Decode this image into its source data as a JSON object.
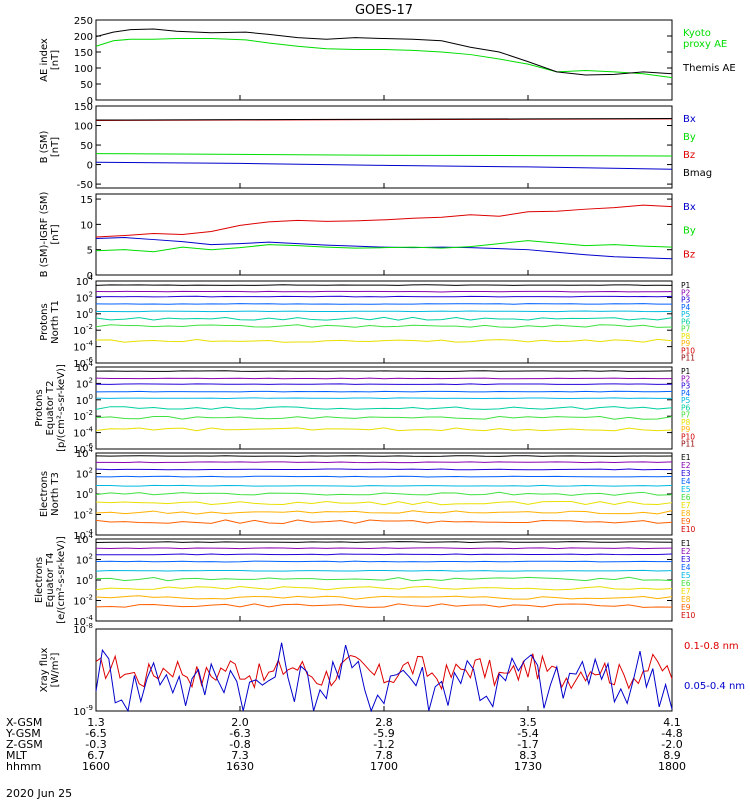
{
  "title": "GOES-17",
  "footer_date": "2020 Jun 25",
  "colors": {
    "black": "#000000",
    "green": "#00dd00",
    "blue": "#0000cc",
    "red": "#dd0000",
    "ch": [
      "#000000",
      "#8a00b0",
      "#2400d8",
      "#0060ff",
      "#00b8e0",
      "#00d0a0",
      "#40e040",
      "#e8e000",
      "#ffb000",
      "#ff6000",
      "#d00000",
      "#900000"
    ]
  },
  "chart_data": [
    {
      "type": "line",
      "id": "ae",
      "ylabel": [
        "AE index",
        "[nT]"
      ],
      "yscale": "linear",
      "ylim": [
        0,
        250
      ],
      "yticks": [
        "0",
        "50",
        "100",
        "150",
        "200",
        "250"
      ],
      "ytick_values": [
        0,
        50,
        100,
        150,
        200,
        250
      ],
      "x": [
        0,
        0.03,
        0.06,
        0.1,
        0.14,
        0.2,
        0.26,
        0.3,
        0.35,
        0.4,
        0.45,
        0.5,
        0.55,
        0.6,
        0.65,
        0.7,
        0.75,
        0.8,
        0.85,
        0.9,
        0.95,
        1.0
      ],
      "series": [
        {
          "name": "Kyoto proxy AE",
          "label_lines": [
            "Kyoto",
            "proxy AE"
          ],
          "color": "green",
          "values": [
            168,
            185,
            190,
            190,
            192,
            192,
            188,
            178,
            168,
            160,
            158,
            158,
            155,
            150,
            142,
            128,
            112,
            88,
            92,
            88,
            82,
            70
          ]
        },
        {
          "name": "Themis AE",
          "label_lines": [
            "Themis AE"
          ],
          "color": "black",
          "values": [
            198,
            212,
            220,
            222,
            215,
            210,
            212,
            205,
            195,
            190,
            195,
            192,
            190,
            185,
            165,
            150,
            120,
            88,
            78,
            80,
            88,
            82
          ]
        }
      ]
    },
    {
      "type": "line",
      "id": "bsm",
      "ylabel": [
        "B (SM)",
        "[nT]"
      ],
      "yscale": "linear",
      "ylim": [
        -60,
        150
      ],
      "yticks": [
        "-50",
        "0",
        "50",
        "100",
        "150"
      ],
      "ytick_values": [
        -50,
        0,
        50,
        100,
        150
      ],
      "x": [
        0,
        0.25,
        0.5,
        0.75,
        1.0
      ],
      "series": [
        {
          "name": "Bx",
          "color": "blue",
          "values": [
            6,
            3,
            -2,
            -6,
            -12
          ]
        },
        {
          "name": "By",
          "color": "green",
          "values": [
            28,
            26,
            24,
            23,
            22
          ]
        },
        {
          "name": "Bz",
          "color": "red",
          "values": [
            113,
            114,
            115,
            116,
            117
          ]
        },
        {
          "name": "Bmag",
          "color": "black",
          "values": [
            114,
            115,
            116,
            117,
            118
          ]
        }
      ]
    },
    {
      "type": "line",
      "id": "bigrf",
      "ylabel": [
        "B (SM)-IGRF (SM)",
        "[nT]"
      ],
      "yscale": "linear",
      "ylim": [
        0,
        16
      ],
      "yticks": [
        "0",
        "5",
        "10",
        "15"
      ],
      "ytick_values": [
        0,
        5,
        10,
        15
      ],
      "x": [
        0,
        0.05,
        0.1,
        0.15,
        0.2,
        0.25,
        0.3,
        0.35,
        0.4,
        0.45,
        0.5,
        0.55,
        0.6,
        0.65,
        0.7,
        0.75,
        0.8,
        0.85,
        0.9,
        0.95,
        1.0
      ],
      "series": [
        {
          "name": "Bx",
          "color": "blue",
          "values": [
            7.2,
            7.4,
            7.0,
            6.6,
            6.0,
            6.2,
            6.5,
            6.2,
            5.9,
            5.7,
            5.5,
            5.4,
            5.5,
            5.4,
            5.2,
            5.0,
            4.5,
            4.0,
            3.6,
            3.4,
            3.2
          ]
        },
        {
          "name": "By",
          "color": "green",
          "values": [
            4.8,
            5.0,
            4.6,
            5.5,
            5.0,
            5.4,
            6.0,
            5.8,
            5.5,
            5.3,
            5.4,
            5.5,
            5.3,
            5.6,
            6.2,
            6.8,
            6.3,
            5.8,
            6.0,
            5.7,
            5.5
          ]
        },
        {
          "name": "Bz",
          "color": "red",
          "values": [
            7.5,
            7.8,
            8.2,
            8.0,
            8.6,
            9.8,
            10.5,
            10.8,
            10.6,
            10.7,
            10.9,
            11.2,
            11.4,
            11.9,
            11.6,
            12.5,
            12.6,
            13.0,
            13.3,
            13.8,
            13.5
          ]
        }
      ]
    },
    {
      "type": "line",
      "id": "p_north",
      "ylabel": [
        "Protons",
        "North T1"
      ],
      "yscale": "log",
      "ylim": [
        -6,
        4
      ],
      "yticks": [
        "10^4",
        "10^2",
        "10^0",
        "10^-2",
        "10^-4",
        "10^-6"
      ],
      "ytick_values": [
        4,
        2,
        0,
        -2,
        -4,
        -6
      ],
      "channels": [
        "P1",
        "P2",
        "P3",
        "P4",
        "P5",
        "P6",
        "P7",
        "P8",
        "P9",
        "P10",
        "P11"
      ],
      "channel_colors": [
        0,
        1,
        2,
        3,
        4,
        5,
        6,
        7,
        8,
        10,
        11
      ],
      "channel_log_values": [
        3.5,
        2.7,
        2.1,
        1.2,
        0.3,
        -0.6,
        -1.5,
        -3.3,
        null,
        null,
        null
      ]
    },
    {
      "type": "line",
      "id": "p_equator",
      "ylabel": [
        "Protons",
        "Equator T2",
        "[p/(cm²-s-sr-keV)]"
      ],
      "yscale": "log",
      "ylim": [
        -6,
        4
      ],
      "yticks": [
        "10^4",
        "10^2",
        "10^0",
        "10^-2",
        "10^-4",
        "10^-6"
      ],
      "ytick_values": [
        4,
        2,
        0,
        -2,
        -4,
        -6
      ],
      "channels": [
        "P1",
        "P2",
        "P3",
        "P4",
        "P5",
        "P6",
        "P7",
        "P8",
        "P9",
        "P10",
        "P11"
      ],
      "channel_colors": [
        0,
        1,
        2,
        3,
        4,
        5,
        6,
        7,
        8,
        10,
        11
      ],
      "channel_log_values": [
        3.5,
        2.6,
        1.9,
        1.0,
        0.2,
        -1.0,
        -2.2,
        -3.6,
        null,
        null,
        null
      ]
    },
    {
      "type": "line",
      "id": "e_north",
      "ylabel": [
        "Electrons",
        "North T3"
      ],
      "yscale": "log",
      "ylim": [
        -4,
        4
      ],
      "yticks": [
        "10^4",
        "10^2",
        "10^0",
        "10^-2",
        "10^-4"
      ],
      "ytick_values": [
        4,
        2,
        0,
        -2,
        -4
      ],
      "channels": [
        "E1",
        "E2",
        "E3",
        "E4",
        "E5",
        "E6",
        "E7",
        "E8",
        "E9",
        "E10"
      ],
      "channel_colors": [
        0,
        1,
        2,
        3,
        4,
        6,
        7,
        8,
        9,
        10
      ],
      "channel_log_values": [
        3.7,
        3.1,
        2.4,
        1.7,
        0.8,
        0.0,
        -0.9,
        -1.8,
        -2.7,
        null
      ]
    },
    {
      "type": "line",
      "id": "e_equator",
      "ylabel": [
        "Electrons",
        "Equator T4",
        "[e/(cm²-s-sr-keV)]"
      ],
      "yscale": "log",
      "ylim": [
        -4,
        4
      ],
      "yticks": [
        "10^4",
        "10^2",
        "10^0",
        "10^-2",
        "10^-4"
      ],
      "ytick_values": [
        4,
        2,
        0,
        -2,
        -4
      ],
      "channels": [
        "E1",
        "E2",
        "E3",
        "E4",
        "E5",
        "E6",
        "E7",
        "E8",
        "E9",
        "E10"
      ],
      "channel_colors": [
        0,
        1,
        2,
        3,
        4,
        6,
        7,
        8,
        9,
        10
      ],
      "channel_log_values": [
        3.7,
        3.1,
        2.5,
        1.8,
        0.9,
        0.1,
        -0.8,
        -1.7,
        -2.5,
        null
      ]
    },
    {
      "type": "line",
      "id": "xray",
      "ylabel": [
        "Xray flux",
        "[W/m²]"
      ],
      "yscale": "log",
      "ylim": [
        -9,
        -8
      ],
      "yticks": [
        "10^-8",
        "10^-9"
      ],
      "ytick_values": [
        -8,
        -9
      ],
      "series": [
        {
          "name": "0.1-0.8 nm",
          "color": "red",
          "base": -8.52,
          "amp": 0.16
        },
        {
          "name": "0.05-0.4 nm",
          "color": "blue",
          "base": -8.62,
          "amp": 0.34
        }
      ]
    }
  ],
  "x_axis": {
    "rows": [
      {
        "label": "X-GSM",
        "values": [
          "1.3",
          "2.0",
          "2.8",
          "3.5",
          "4.1"
        ]
      },
      {
        "label": "Y-GSM",
        "values": [
          "-6.5",
          "-6.3",
          "-5.9",
          "-5.4",
          "-4.8"
        ]
      },
      {
        "label": "Z-GSM",
        "values": [
          "-0.3",
          "-0.8",
          "-1.2",
          "-1.7",
          "-2.0"
        ]
      },
      {
        "label": "MLT",
        "values": [
          "6.7",
          "7.3",
          "7.8",
          "8.3",
          "8.9"
        ]
      },
      {
        "label": "hhmm",
        "values": [
          "1600",
          "1630",
          "1700",
          "1730",
          "1800"
        ]
      }
    ]
  }
}
